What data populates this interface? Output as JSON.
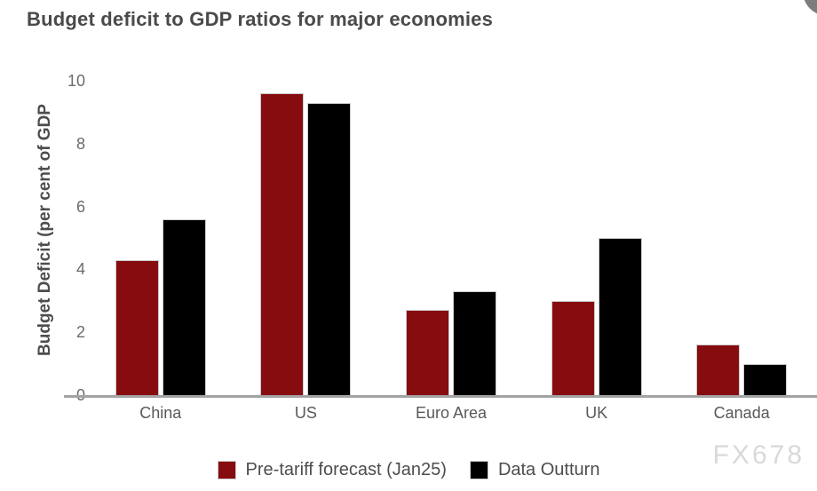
{
  "page": {
    "title": "Budget deficit to GDP ratios for major economies",
    "watermark": "FX678"
  },
  "chart_data": {
    "type": "bar",
    "title": "Budget deficit to GDP ratios for major economies",
    "xlabel": "",
    "ylabel": "Budget Deficit (per cent of GDP",
    "categories": [
      "China",
      "US",
      "Euro Area",
      "UK",
      "Canada"
    ],
    "series": [
      {
        "name": "Pre-tariff forecast (Jan25)",
        "color": "#870c0f",
        "values": [
          4.3,
          9.6,
          2.7,
          3.0,
          1.6
        ]
      },
      {
        "name": "Data Outturn",
        "color": "#000000",
        "values": [
          5.6,
          9.3,
          3.3,
          5.0,
          1.0
        ]
      }
    ],
    "ylim": [
      0,
      10
    ],
    "yticks": [
      0,
      2,
      4,
      6,
      8,
      10
    ],
    "grid": false,
    "legend_position": "bottom",
    "colors": {
      "bar_border": "#cccccc",
      "axis_line": "#a3a3a3",
      "title_text": "#4a4a4a",
      "tick_text": "#6b6b6b",
      "corner_button": "#7d7d7d",
      "watermark_text": "#d9d9d9"
    }
  }
}
